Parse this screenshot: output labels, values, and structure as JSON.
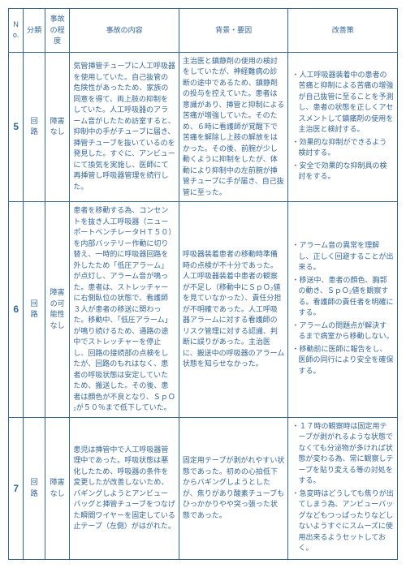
{
  "headers": {
    "no": "No.",
    "category": "分類",
    "severity": "事故の程度",
    "content": "事故の内容",
    "background": "背景・要因",
    "improvement": "改善策"
  },
  "rows": [
    {
      "no": "5",
      "category": "回路",
      "severity": "障害なし",
      "content": "気管挿管チューブに人工呼吸器を使用していた。自己抜管の危険性があったため、家族の同意を得て、両上肢の抑制をしていた。人工呼吸器のアラーム音がしたため訪室すると、抑制中の手がチューブに届き、挿管チューブを抜いているのを発見した。すぐに、アンビューにて換気を実施し、医師にて再挿管し呼吸器管理を続行した。",
      "background": "主治医と鎮静剤の使用の検討をしていたが、神経難病の診断の途中であるため、鎮静剤の投与を控えていた。患者は意識があり、挿管と抑制による苦痛が増強していた。そのため、６時に看護師が覚醒下で苦痛を解除し上肢の解放をはかった。その後、前腕が少し動くように抑制をしたが、体動により抑制中の左前腕が挿管チューブに手が届き、自己抜管に至った。",
      "improvements": [
        "人工呼吸器装着中の患者の苦痛と抑制による苦痛の増強が自己抜管に至ることを予測し、患者の状態を正しくアセスメントして鎮痛剤の使用を主治医と検討する。",
        "効果的な抑制ができるよう検討する。",
        "安全で効果的な抑制具の検討をする。"
      ]
    },
    {
      "no": "6",
      "category": "回路",
      "severity": "障害の可能性なし",
      "content": "患者を移動する為、コンセントを抜き人工呼吸器（ニューポートベンチレータＨＴ５０）を内部バッテリー作動に切り替え、一時的に呼吸器回路を外したため「低圧アラーム」が点灯し、アラーム音が鳴った。患者は、ストレッチャーに右側臥位の状態で、看護師３人が患者の移送に関わった。移動中、「低圧アラーム」が鳴り続けるため、通路の途中でストレッチャーを停止し、回路の接続部の点検をしたが、回路のもれはなく、患者の呼吸状態は安定していたため、搬送した。その後、患者は顔色が不良となり、ＳｐＯ₂が５０％まで低下していた。",
      "background": "呼吸器装着患者の移動時準備時の点検が不十分であった。人工呼吸器装着中患者の観察が不足し（移動中にＳｐＯ₂値を見ていなかった）、責任分担が不明確であった。人工呼吸器アラームに対する看護師のリスク管理に対する認識、判断に誤りがあった。主治医に、搬送中の呼吸器のアラーム状態を知らせなかった。",
      "improvements": [
        "アラーム音の異常を理解し、正しく回避することが出来る。",
        "移送中、患者の顔色、胸郭の動き、ＳｐＯ₂値を観察する。看護師の責任者を明確にする。",
        "アラームの問題点が解決するまで病室から移動しない。",
        "移動前に医師に報告をし、医師の同行により安全を確保する。"
      ]
    },
    {
      "no": "7",
      "category": "回路",
      "severity": "障害なし",
      "content": "患児は挿管中で人工呼吸器管理中であった。呼吸状態は悪化したため、呼吸器の条件を変更したが改善しないため、バギングしようとアンビューバッグと挿管チューブをつなげた瞬間ワイヤーを固定している止テープ（左側）がはがれた。",
      "background": "固定用テープが剥がれやすい状態であった。初めの心拍低下からバギングしようとしたが、焦りがあり酸素チューブもひっかかりやや突っ張った状態であった。",
      "improvements": [
        "１７時の観察時は固定用テープが剥がれるような状態でなくても分泌物が多ければ状態が変わる為、常に観察しテープを貼り変える等の対処をする。",
        "急変時はどうしても焦りが出てしまう為、アンビューバッグなどもつっぱったりなどしないようすぐにスムーズに使用出来るようセットしておく。"
      ]
    }
  ]
}
